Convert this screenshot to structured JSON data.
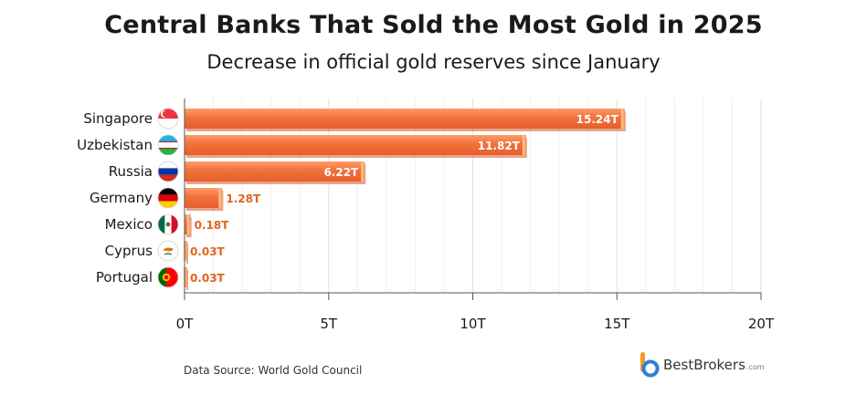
{
  "chart_data": {
    "type": "bar",
    "orientation": "horizontal",
    "title": "Central Banks That Sold the Most Gold in 2025",
    "subtitle": "Decrease in official gold reserves since January",
    "categories": [
      "Singapore",
      "Uzbekistan",
      "Russia",
      "Germany",
      "Mexico",
      "Cyprus",
      "Portugal"
    ],
    "values": [
      15.24,
      11.82,
      6.22,
      1.28,
      0.18,
      0.03,
      0.03
    ],
    "value_labels": [
      "15.24T",
      "11.82T",
      "6.22T",
      "1.28T",
      "0.18T",
      "0.03T",
      "0.03T"
    ],
    "xlim": [
      0,
      20
    ],
    "xticks": [
      0,
      5,
      10,
      15,
      20
    ],
    "xtick_labels": [
      "0T",
      "5T",
      "10T",
      "15T",
      "20T"
    ],
    "xlabel": "",
    "ylabel": "",
    "grid": "vertical",
    "bar_color": "#f2703a",
    "bar_shadow_color": "#d45a28",
    "label_color_inside": "#ffffff",
    "label_color_outside": "#e0661e"
  },
  "footer": {
    "source": "Data Source: World Gold Council",
    "brand_name": "BestBrokers",
    "brand_domain": ".com"
  },
  "icons": {
    "flags": [
      "singapore-flag-icon",
      "uzbekistan-flag-icon",
      "russia-flag-icon",
      "germany-flag-icon",
      "mexico-flag-icon",
      "cyprus-flag-icon",
      "portugal-flag-icon"
    ],
    "brand": "bestbrokers-logo-icon"
  }
}
